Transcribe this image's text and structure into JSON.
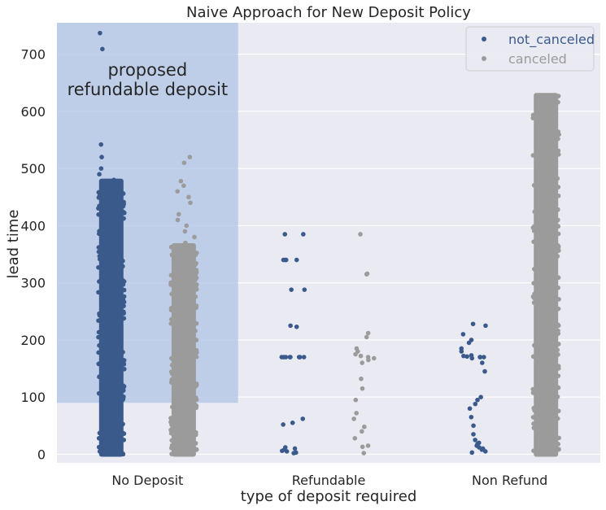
{
  "chart_data": {
    "type": "scatter",
    "subtype": "strip",
    "title": "Naive Approach for New Deposit Policy",
    "xlabel": "type of deposit required",
    "ylabel": "lead time",
    "categories": [
      "No Deposit",
      "Refundable",
      "Non Refund"
    ],
    "ylim": [
      -15,
      755
    ],
    "yticks": [
      0,
      100,
      200,
      300,
      400,
      500,
      600,
      700
    ],
    "grid": true,
    "legend_position": "top-right",
    "series": [
      {
        "name": "not_canceled",
        "color": "#3b5a8c",
        "label_color": "#3b5a8c",
        "groups": [
          {
            "category": "No Deposit",
            "dense_range": [
              0,
              478
            ],
            "outliers": [
              737,
              709,
              542,
              520,
              500,
              490,
              480
            ]
          },
          {
            "category": "Refundable",
            "dense_range": null,
            "outliers": [
              385,
              385,
              340,
              340,
              340,
              340,
              288,
              288,
              225,
              223,
              170,
              170,
              170,
              170,
              170,
              170,
              170,
              170,
              62,
              55,
              52,
              12,
              10,
              8,
              6,
              5,
              3,
              2
            ]
          },
          {
            "category": "Non Refund",
            "dense_range": null,
            "outliers": [
              228,
              225,
              210,
              200,
              195,
              185,
              180,
              173,
              172,
              171,
              170,
              170,
              170,
              168,
              160,
              145,
              100,
              95,
              88,
              80,
              65,
              50,
              35,
              25,
              20,
              18,
              15,
              12,
              10,
              8,
              5,
              3
            ]
          }
        ]
      },
      {
        "name": "canceled",
        "color": "#9b9b9b",
        "label_color": "#9b9b9b",
        "groups": [
          {
            "category": "No Deposit",
            "dense_range": [
              0,
              365
            ],
            "outliers": [
              520,
              510,
              478,
              470,
              460,
              450,
              440,
              420,
              410,
              400,
              390,
              380,
              370
            ]
          },
          {
            "category": "Refundable",
            "dense_range": null,
            "outliers": [
              385,
              316,
              315,
              212,
              205,
              185,
              180,
              175,
              172,
              170,
              168,
              165,
              160,
              132,
              115,
              95,
              72,
              62,
              48,
              40,
              28,
              15,
              13,
              2
            ]
          },
          {
            "category": "Non Refund",
            "dense_range": [
              0,
              628
            ],
            "outliers": []
          }
        ]
      }
    ],
    "highlight_region": {
      "category": "No Deposit",
      "y_range": [
        90,
        755
      ],
      "color": "#b0c4e4"
    },
    "annotation": {
      "lines": [
        "proposed",
        "refundable deposit"
      ],
      "category": "No Deposit",
      "y": 640
    }
  }
}
